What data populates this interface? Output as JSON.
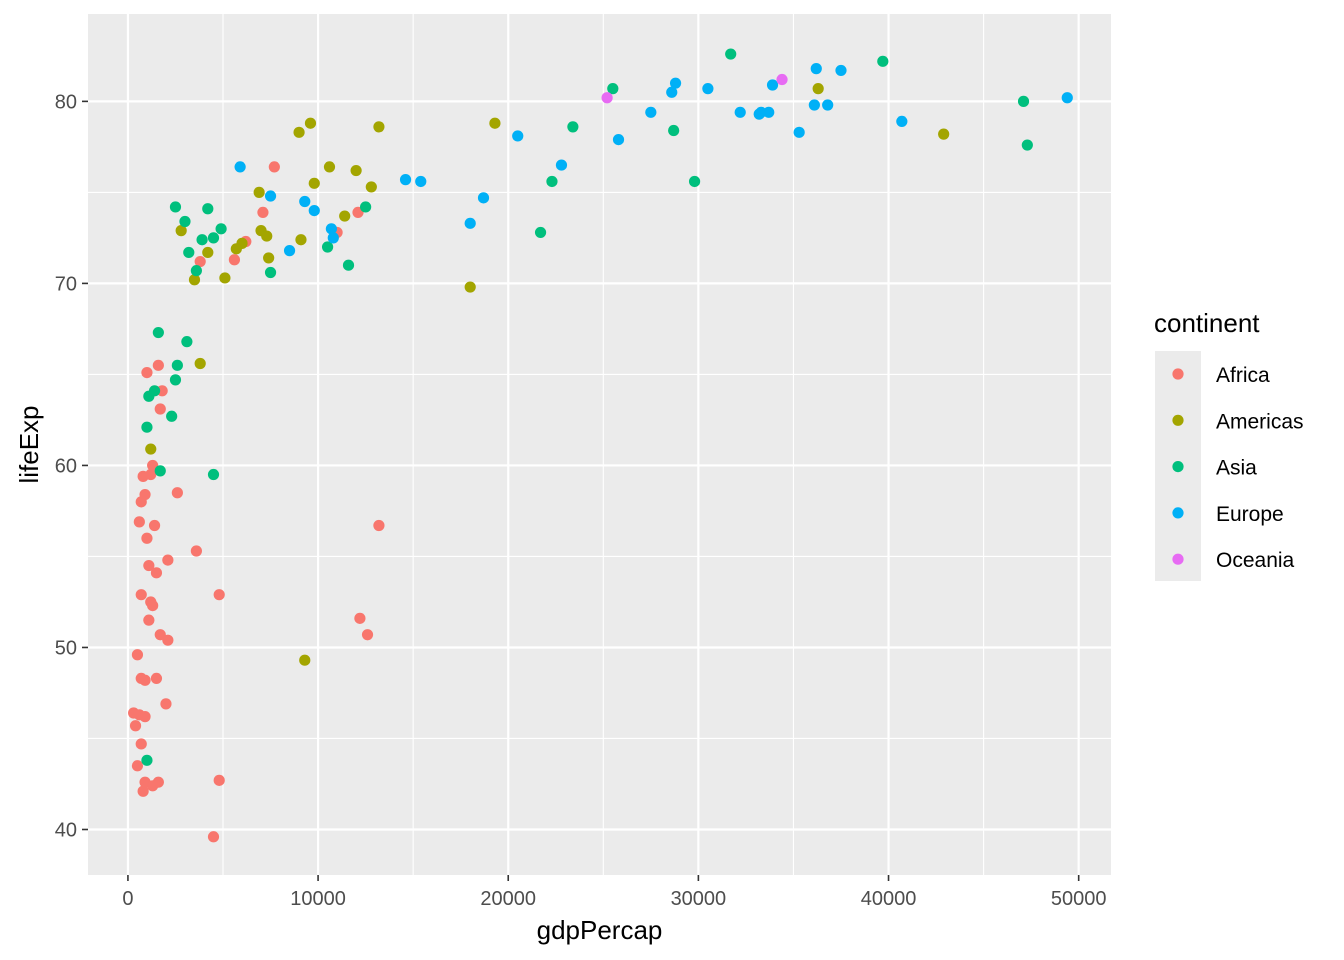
{
  "chart_data": {
    "type": "scatter",
    "xlabel": "gdpPercap",
    "ylabel": "lifeExp",
    "xlim": [
      -2100,
      51700
    ],
    "ylim": [
      37.5,
      84.8
    ],
    "x_ticks": [
      0,
      10000,
      20000,
      30000,
      40000,
      50000
    ],
    "x_tick_labels": [
      "0",
      "10000",
      "20000",
      "30000",
      "40000",
      "50000"
    ],
    "y_ticks": [
      40,
      50,
      60,
      70,
      80
    ],
    "y_tick_labels": [
      "40",
      "50",
      "60",
      "70",
      "80"
    ],
    "grid": true,
    "background": "#ebebeb",
    "legend": {
      "title": "continent",
      "position": "right",
      "entries": [
        {
          "label": "Africa",
          "color": "#f8766d"
        },
        {
          "label": "Americas",
          "color": "#a3a500"
        },
        {
          "label": "Asia",
          "color": "#00bf7d"
        },
        {
          "label": "Europe",
          "color": "#00b0f6"
        },
        {
          "label": "Oceania",
          "color": "#e76bf3"
        }
      ]
    },
    "series": [
      {
        "name": "Africa",
        "color": "#f8766d",
        "points": [
          [
            5600,
            71.3
          ],
          [
            7700,
            76.4
          ],
          [
            6200,
            72.3
          ],
          [
            7100,
            73.9
          ],
          [
            11000,
            72.8
          ],
          [
            12100,
            73.9
          ],
          [
            3800,
            71.2
          ],
          [
            1000,
            65.1
          ],
          [
            1600,
            65.5
          ],
          [
            1800,
            64.1
          ],
          [
            1700,
            63.1
          ],
          [
            1300,
            60.0
          ],
          [
            800,
            59.4
          ],
          [
            1200,
            59.5
          ],
          [
            2600,
            58.5
          ],
          [
            700,
            58.0
          ],
          [
            900,
            58.4
          ],
          [
            600,
            56.9
          ],
          [
            1400,
            56.7
          ],
          [
            1000,
            56.0
          ],
          [
            3600,
            55.3
          ],
          [
            2100,
            54.8
          ],
          [
            1100,
            54.5
          ],
          [
            1500,
            54.1
          ],
          [
            700,
            52.9
          ],
          [
            4800,
            52.9
          ],
          [
            1200,
            52.5
          ],
          [
            1300,
            52.3
          ],
          [
            1100,
            51.5
          ],
          [
            12200,
            51.6
          ],
          [
            13200,
            56.7
          ],
          [
            1700,
            50.7
          ],
          [
            2100,
            50.4
          ],
          [
            12600,
            50.7
          ],
          [
            500,
            49.6
          ],
          [
            700,
            48.3
          ],
          [
            900,
            48.2
          ],
          [
            1500,
            48.3
          ],
          [
            2000,
            46.9
          ],
          [
            300,
            46.4
          ],
          [
            600,
            46.3
          ],
          [
            900,
            46.2
          ],
          [
            400,
            45.7
          ],
          [
            700,
            44.7
          ],
          [
            500,
            43.5
          ],
          [
            900,
            42.6
          ],
          [
            1600,
            42.6
          ],
          [
            1300,
            42.4
          ],
          [
            800,
            42.1
          ],
          [
            4800,
            42.7
          ],
          [
            4500,
            39.6
          ]
        ]
      },
      {
        "name": "Americas",
        "color": "#a3a500",
        "points": [
          [
            9000,
            78.3
          ],
          [
            9600,
            78.8
          ],
          [
            13200,
            78.6
          ],
          [
            10600,
            76.4
          ],
          [
            12000,
            76.2
          ],
          [
            9800,
            75.5
          ],
          [
            12800,
            75.3
          ],
          [
            6900,
            75.0
          ],
          [
            11400,
            73.7
          ],
          [
            2800,
            72.9
          ],
          [
            7000,
            72.9
          ],
          [
            7300,
            72.6
          ],
          [
            6000,
            72.2
          ],
          [
            5700,
            71.9
          ],
          [
            4200,
            71.7
          ],
          [
            7400,
            71.4
          ],
          [
            9100,
            72.4
          ],
          [
            3500,
            70.2
          ],
          [
            5100,
            70.3
          ],
          [
            3800,
            65.6
          ],
          [
            1200,
            60.9
          ],
          [
            9300,
            49.3
          ],
          [
            19300,
            78.8
          ],
          [
            18000,
            69.8
          ],
          [
            36300,
            80.7
          ],
          [
            42900,
            78.2
          ]
        ]
      },
      {
        "name": "Asia",
        "color": "#00bf7d",
        "points": [
          [
            2500,
            74.2
          ],
          [
            3000,
            73.4
          ],
          [
            4200,
            74.1
          ],
          [
            4900,
            73.0
          ],
          [
            4500,
            72.5
          ],
          [
            3900,
            72.4
          ],
          [
            3200,
            71.7
          ],
          [
            3600,
            70.7
          ],
          [
            7500,
            70.6
          ],
          [
            10500,
            72.0
          ],
          [
            11600,
            71.0
          ],
          [
            12500,
            74.2
          ],
          [
            1600,
            67.3
          ],
          [
            3100,
            66.8
          ],
          [
            2600,
            65.5
          ],
          [
            2500,
            64.7
          ],
          [
            1400,
            64.1
          ],
          [
            1100,
            63.8
          ],
          [
            2300,
            62.7
          ],
          [
            1000,
            62.1
          ],
          [
            1700,
            59.7
          ],
          [
            4500,
            59.5
          ],
          [
            1000,
            43.8
          ],
          [
            22300,
            75.6
          ],
          [
            21700,
            72.8
          ],
          [
            23400,
            78.6
          ],
          [
            25500,
            80.7
          ],
          [
            28700,
            78.4
          ],
          [
            29800,
            75.6
          ],
          [
            31700,
            82.6
          ],
          [
            39700,
            82.2
          ],
          [
            47100,
            80.0
          ],
          [
            47300,
            77.6
          ]
        ]
      },
      {
        "name": "Europe",
        "color": "#00b0f6",
        "points": [
          [
            5900,
            76.4
          ],
          [
            7500,
            74.8
          ],
          [
            8500,
            71.8
          ],
          [
            9300,
            74.5
          ],
          [
            9800,
            74.0
          ],
          [
            10700,
            73.0
          ],
          [
            10800,
            72.5
          ],
          [
            14600,
            75.7
          ],
          [
            15400,
            75.6
          ],
          [
            18000,
            73.3
          ],
          [
            18700,
            74.7
          ],
          [
            20500,
            78.1
          ],
          [
            22800,
            76.5
          ],
          [
            25800,
            77.9
          ],
          [
            27500,
            79.4
          ],
          [
            28600,
            80.5
          ],
          [
            28800,
            81.0
          ],
          [
            30500,
            80.7
          ],
          [
            32200,
            79.4
          ],
          [
            33200,
            79.3
          ],
          [
            33300,
            79.4
          ],
          [
            33700,
            79.4
          ],
          [
            33900,
            80.9
          ],
          [
            35300,
            78.3
          ],
          [
            36100,
            79.8
          ],
          [
            36200,
            81.8
          ],
          [
            36800,
            79.8
          ],
          [
            37500,
            81.7
          ],
          [
            40700,
            78.9
          ],
          [
            49400,
            80.2
          ]
        ]
      },
      {
        "name": "Oceania",
        "color": "#e76bf3",
        "points": [
          [
            25200,
            80.2
          ],
          [
            34400,
            81.2
          ]
        ]
      }
    ]
  }
}
